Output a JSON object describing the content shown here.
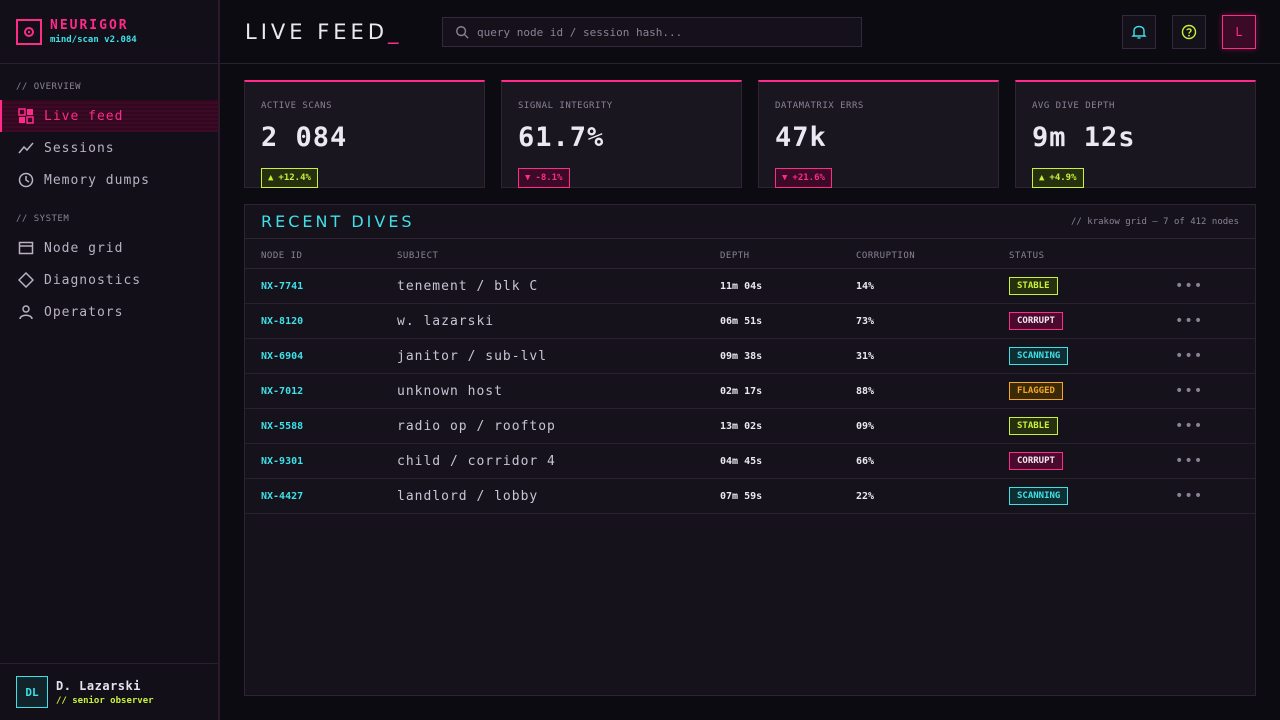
{
  "brand": {
    "name": "NEURIGOR",
    "version": "mind/scan v2.084"
  },
  "nav": {
    "overview_label": "// OVERVIEW",
    "system_label": "// SYSTEM",
    "items": [
      {
        "label": "Live feed",
        "icon": "grid-icon",
        "active": true
      },
      {
        "label": "Sessions",
        "icon": "trend-icon",
        "active": false
      },
      {
        "label": "Memory dumps",
        "icon": "clock-icon",
        "active": false
      },
      {
        "label": "Node grid",
        "icon": "window-icon",
        "active": false
      },
      {
        "label": "Diagnostics",
        "icon": "diamond-icon",
        "active": false
      },
      {
        "label": "Operators",
        "icon": "user-icon",
        "active": false
      }
    ]
  },
  "user": {
    "initials": "DL",
    "name": "D. Lazarski",
    "role": "// senior observer"
  },
  "header": {
    "title": "LIVE FEED",
    "cursor": "_",
    "search_placeholder": "query node id / session hash...",
    "profile_initial": "L"
  },
  "kpis": [
    {
      "label": "ACTIVE SCANS",
      "value": "2 084",
      "delta": "+12.4%",
      "direction": "up"
    },
    {
      "label": "SIGNAL INTEGRITY",
      "value": "61.7%",
      "delta": "-8.1%",
      "direction": "down"
    },
    {
      "label": "DATAMATRIX ERRS",
      "value": "47k",
      "delta": "+21.6%",
      "direction": "down"
    },
    {
      "label": "AVG DIVE DEPTH",
      "value": "9m 12s",
      "delta": "+4.9%",
      "direction": "up"
    }
  ],
  "table": {
    "title": "RECENT DIVES",
    "meta": "// krakow grid — 7 of 412 nodes",
    "columns": [
      "NODE ID",
      "SUBJECT",
      "DEPTH",
      "CORRUPTION",
      "STATUS"
    ],
    "rows": [
      {
        "id": "NX-7741",
        "subject": "tenement / blk C",
        "depth": "11m 04s",
        "corruption": "14%",
        "status": "STABLE"
      },
      {
        "id": "NX-8120",
        "subject": "w. lazarski",
        "depth": "06m 51s",
        "corruption": "73%",
        "status": "CORRUPT"
      },
      {
        "id": "NX-6904",
        "subject": "janitor / sub-lvl",
        "depth": "09m 38s",
        "corruption": "31%",
        "status": "SCANNING"
      },
      {
        "id": "NX-7012",
        "subject": "unknown host",
        "depth": "02m 17s",
        "corruption": "88%",
        "status": "FLAGGED"
      },
      {
        "id": "NX-5588",
        "subject": "radio op / rooftop",
        "depth": "13m 02s",
        "corruption": "09%",
        "status": "STABLE"
      },
      {
        "id": "NX-9301",
        "subject": "child / corridor 4",
        "depth": "04m 45s",
        "corruption": "66%",
        "status": "CORRUPT"
      },
      {
        "id": "NX-4427",
        "subject": "landlord / lobby",
        "depth": "07m 59s",
        "corruption": "22%",
        "status": "SCANNING"
      }
    ],
    "more_glyph": "•••"
  },
  "colors": {
    "accent": "#ff2a8a",
    "cyan": "#3fe0e8",
    "lime": "#c8f23a",
    "amber": "#f5a623",
    "bg": "#0d0b12"
  }
}
